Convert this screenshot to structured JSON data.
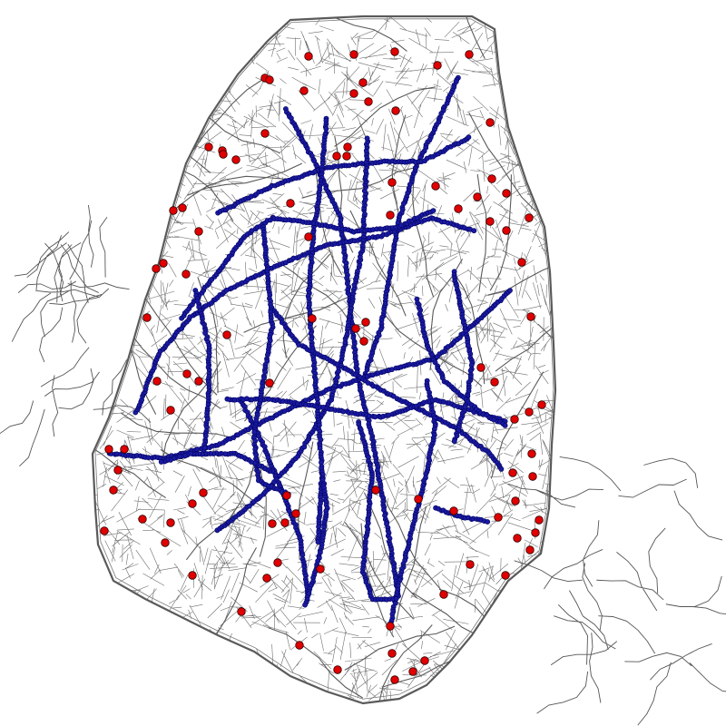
{
  "colors": {
    "background": "#ffffff",
    "road": "#555555",
    "road_major": "#5a5a5a",
    "metro_dot": "#1a1aa0",
    "metro_dot_outline": "#000060",
    "station_fill": "#e00000",
    "station_outline": "#300000"
  },
  "layers": [
    {
      "name": "street-network",
      "type": "lines"
    },
    {
      "name": "metro-route-points",
      "type": "points"
    },
    {
      "name": "poi-markers",
      "type": "points"
    }
  ]
}
